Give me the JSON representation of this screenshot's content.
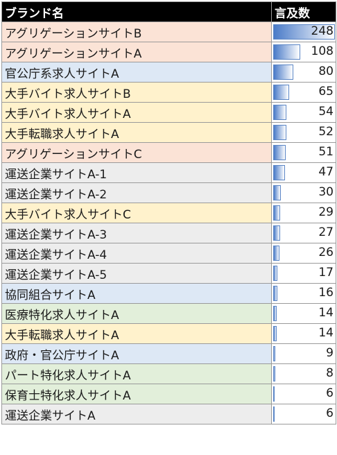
{
  "chart_data": {
    "type": "table",
    "headers": [
      "ブランド名",
      "言及数"
    ],
    "max_value": 248,
    "bar_color": "#4a7bc8",
    "rows": [
      {
        "name": "アグリゲーションサイトB",
        "value": 248,
        "category": "aggregation"
      },
      {
        "name": "アグリゲーションサイトA",
        "value": 108,
        "category": "aggregation"
      },
      {
        "name": "官公庁系求人サイトA",
        "value": 80,
        "category": "government"
      },
      {
        "name": "大手バイト求人サイトB",
        "value": 65,
        "category": "major"
      },
      {
        "name": "大手バイト求人サイトA",
        "value": 54,
        "category": "major"
      },
      {
        "name": "大手転職求人サイトA",
        "value": 52,
        "category": "major"
      },
      {
        "name": "アグリゲーションサイトC",
        "value": 51,
        "category": "aggregation"
      },
      {
        "name": "運送企業サイトA-1",
        "value": 47,
        "category": "transport"
      },
      {
        "name": "運送企業サイトA-2",
        "value": 30,
        "category": "transport"
      },
      {
        "name": "大手バイト求人サイトC",
        "value": 29,
        "category": "major"
      },
      {
        "name": "運送企業サイトA-3",
        "value": 27,
        "category": "transport"
      },
      {
        "name": "運送企業サイトA-4",
        "value": 26,
        "category": "transport"
      },
      {
        "name": "運送企業サイトA-5",
        "value": 17,
        "category": "transport"
      },
      {
        "name": "協同組合サイトA",
        "value": 16,
        "category": "government"
      },
      {
        "name": "医療特化求人サイトA",
        "value": 14,
        "category": "specialized"
      },
      {
        "name": "大手転職求人サイトA",
        "value": 14,
        "category": "major"
      },
      {
        "name": "政府・官公庁サイトA",
        "value": 9,
        "category": "government"
      },
      {
        "name": "パート特化求人サイトA",
        "value": 8,
        "category": "specialized"
      },
      {
        "name": "保育士特化求人サイトA",
        "value": 6,
        "category": "specialized"
      },
      {
        "name": "運送企業サイトA",
        "value": 6,
        "category": "transport"
      }
    ],
    "category_colors": {
      "aggregation": "#fbe3d6",
      "government": "#dde8f5",
      "major": "#fff2cc",
      "transport": "#ededed",
      "specialized": "#e2efda"
    }
  }
}
